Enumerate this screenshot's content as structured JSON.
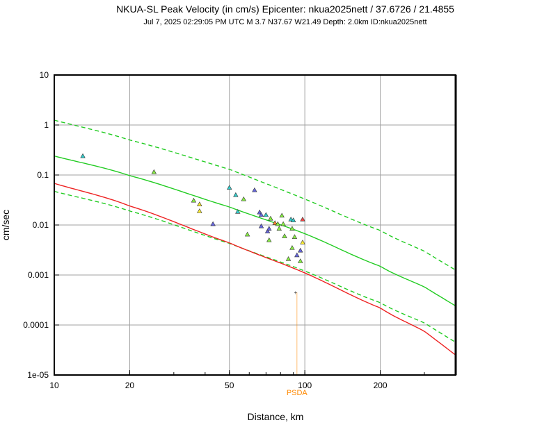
{
  "chart_data": {
    "type": "scatter",
    "title": "NKUA-SL Peak Velocity (in cm/s) Epicenter: nkua2025nett / 37.6726 / 21.4855",
    "subtitle": "Jul  7, 2025 02:29:05 PM UTC   M 3.7   N37.67 W21.49   Depth: 2.0km   ID:nkua2025nett",
    "xlabel": "Distance, km",
    "ylabel": "cm/sec",
    "x_scale": "log",
    "y_scale": "log",
    "xlim": [
      10,
      400
    ],
    "ylim": [
      1e-05,
      10
    ],
    "grid": true,
    "x_ticks": [
      {
        "value": 10,
        "label": "10"
      },
      {
        "value": 20,
        "label": "20"
      },
      {
        "value": 50,
        "label": "50"
      },
      {
        "value": 100,
        "label": "100"
      },
      {
        "value": 200,
        "label": "200"
      }
    ],
    "y_ticks": [
      {
        "value": 10,
        "label": "10"
      },
      {
        "value": 1,
        "label": "1"
      },
      {
        "value": 0.1,
        "label": "0.1"
      },
      {
        "value": 0.01,
        "label": "0.01"
      },
      {
        "value": 0.001,
        "label": "0.001"
      },
      {
        "value": 0.0001,
        "label": "0.0001"
      },
      {
        "value": 1e-05,
        "label": "1e-05"
      }
    ],
    "curves": [
      {
        "role": "median",
        "color": "#22cc22",
        "dashed": false,
        "x": [
          10,
          20,
          50,
          100,
          200,
          300,
          400
        ],
        "y": [
          0.24,
          0.097,
          0.023,
          0.0067,
          0.0015,
          0.00058,
          0.00024
        ]
      },
      {
        "role": "upper",
        "color": "#22cc22",
        "dashed": true,
        "x": [
          10,
          20,
          50,
          100,
          200,
          300,
          400
        ],
        "y": [
          1.25,
          0.5,
          0.13,
          0.033,
          0.0078,
          0.003,
          0.00125
        ]
      },
      {
        "role": "lower",
        "color": "#22cc22",
        "dashed": true,
        "x": [
          10,
          20,
          50,
          100,
          200,
          300,
          400
        ],
        "y": [
          0.047,
          0.019,
          0.0043,
          0.0012,
          0.00028,
          0.00011,
          4.5e-05
        ]
      },
      {
        "role": "red",
        "color": "#ee2222",
        "dashed": false,
        "x": [
          10,
          20,
          50,
          100,
          200,
          300,
          400
        ],
        "y": [
          0.068,
          0.024,
          0.0044,
          0.0011,
          0.00022,
          7.5e-05,
          2.5e-05
        ]
      }
    ],
    "points": [
      {
        "x": 13,
        "y": 0.24,
        "color": "#33cccc"
      },
      {
        "x": 25,
        "y": 0.115,
        "color": "#88ee44"
      },
      {
        "x": 36,
        "y": 0.031,
        "color": "#88ee44"
      },
      {
        "x": 38,
        "y": 0.026,
        "color": "#ffee33"
      },
      {
        "x": 38,
        "y": 0.019,
        "color": "#ffee33"
      },
      {
        "x": 43,
        "y": 0.0105,
        "color": "#6666dd"
      },
      {
        "x": 50,
        "y": 0.056,
        "color": "#33cccc"
      },
      {
        "x": 53,
        "y": 0.04,
        "color": "#33cccc"
      },
      {
        "x": 54,
        "y": 0.0185,
        "color": "#33cccc"
      },
      {
        "x": 57,
        "y": 0.033,
        "color": "#88ee44"
      },
      {
        "x": 59,
        "y": 0.0065,
        "color": "#88ee44"
      },
      {
        "x": 63,
        "y": 0.05,
        "color": "#6666dd"
      },
      {
        "x": 66,
        "y": 0.018,
        "color": "#6666dd"
      },
      {
        "x": 67,
        "y": 0.016,
        "color": "#6666dd"
      },
      {
        "x": 67,
        "y": 0.0095,
        "color": "#6666dd"
      },
      {
        "x": 70,
        "y": 0.016,
        "color": "#33cccc"
      },
      {
        "x": 71,
        "y": 0.0075,
        "color": "#6666dd"
      },
      {
        "x": 72,
        "y": 0.0085,
        "color": "#6666dd"
      },
      {
        "x": 72,
        "y": 0.005,
        "color": "#88ee44"
      },
      {
        "x": 73,
        "y": 0.0135,
        "color": "#88ee44"
      },
      {
        "x": 76,
        "y": 0.011,
        "color": "#ff8833"
      },
      {
        "x": 78,
        "y": 0.0105,
        "color": "#88ee44"
      },
      {
        "x": 79,
        "y": 0.0085,
        "color": "#88ee44"
      },
      {
        "x": 81,
        "y": 0.0155,
        "color": "#88ee44"
      },
      {
        "x": 82,
        "y": 0.0105,
        "color": "#88ee44"
      },
      {
        "x": 83,
        "y": 0.006,
        "color": "#88ee44"
      },
      {
        "x": 86,
        "y": 0.0021,
        "color": "#88ee44"
      },
      {
        "x": 88,
        "y": 0.013,
        "color": "#33cccc"
      },
      {
        "x": 89,
        "y": 0.0085,
        "color": "#88ee44"
      },
      {
        "x": 89,
        "y": 0.0035,
        "color": "#88ee44"
      },
      {
        "x": 90,
        "y": 0.0125,
        "color": "#33cccc"
      },
      {
        "x": 91,
        "y": 0.0058,
        "color": "#88ee44"
      },
      {
        "x": 93,
        "y": 0.0025,
        "color": "#6666dd"
      },
      {
        "x": 96,
        "y": 0.0019,
        "color": "#88ee44"
      },
      {
        "x": 96,
        "y": 0.0031,
        "color": "#6666dd"
      },
      {
        "x": 98,
        "y": 0.0045,
        "color": "#ffee33"
      },
      {
        "x": 98,
        "y": 0.013,
        "color": "#ee4444"
      }
    ],
    "psda_marker": {
      "label": "PSDA",
      "x": 93,
      "y": 0.00045,
      "color": "#ff8800"
    }
  }
}
